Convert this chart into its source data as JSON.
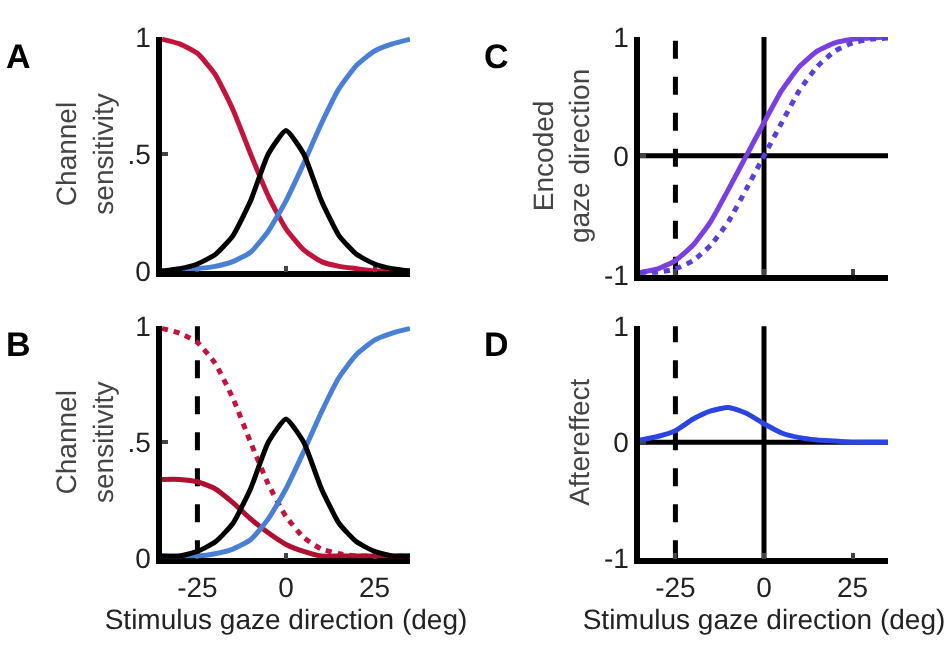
{
  "chart_data": [
    {
      "type": "line",
      "annotations": [
        "A"
      ],
      "ylabel": "Channel sensitivity",
      "xlim": [
        -35,
        35
      ],
      "xticks": [
        {
          "value": -25,
          "label": null
        },
        {
          "value": 0,
          "label": null
        },
        {
          "value": 25,
          "label": null
        }
      ],
      "ylim": [
        0,
        1
      ],
      "yticks": [
        0,
        {
          "value": 0.5,
          "label": ".5"
        },
        1
      ],
      "tick_labels": "y",
      "grid": false,
      "marker": "none",
      "line_style": "solid",
      "x": [
        -35,
        -30,
        -25,
        -20,
        -15,
        -10,
        -5,
        0,
        5,
        10,
        15,
        20,
        25,
        30,
        35
      ],
      "series": [
        {
          "color": "#c0143c",
          "values": [
            0.99,
            0.97,
            0.93,
            0.84,
            0.69,
            0.5,
            0.32,
            0.18,
            0.09,
            0.04,
            0.02,
            0.01,
            0,
            0,
            0
          ]
        },
        {
          "color": "#4a7fd6",
          "values": [
            0,
            0,
            0.01,
            0.02,
            0.04,
            0.08,
            0.17,
            0.3,
            0.46,
            0.63,
            0.78,
            0.88,
            0.94,
            0.97,
            0.99
          ]
        },
        {
          "color": "#000000",
          "values": [
            0,
            0.01,
            0.03,
            0.07,
            0.15,
            0.3,
            0.5,
            0.6,
            0.5,
            0.3,
            0.15,
            0.07,
            0.03,
            0.01,
            0
          ]
        }
      ]
    },
    {
      "type": "line",
      "annotations": [
        "B"
      ],
      "ylabel": "Channel sensitivity",
      "xlabel": "Stimulus gaze direction (deg)",
      "xlim": [
        -35,
        35
      ],
      "xticks": [
        -25,
        0,
        25
      ],
      "ylim": [
        0,
        1
      ],
      "yticks": [
        0,
        {
          "value": 0.5,
          "label": ".5"
        },
        1
      ],
      "grid": false,
      "marker": "none",
      "line_style": "solid",
      "ref_lines": [
        {
          "axis": "x",
          "value": -25,
          "color": "#000000",
          "line_style": "dashed"
        }
      ],
      "x": [
        -35,
        -30,
        -25,
        -20,
        -15,
        -10,
        -5,
        0,
        5,
        10,
        15,
        20,
        25,
        30,
        35
      ],
      "series": [
        {
          "color": "#c0143c",
          "line_style": "dotted",
          "values": [
            0.99,
            0.97,
            0.93,
            0.84,
            0.69,
            0.5,
            0.32,
            0.18,
            0.09,
            0.04,
            0.02,
            0.01,
            0.01,
            0.01,
            0.01
          ]
        },
        {
          "color": "#b01030",
          "values": [
            0.34,
            0.34,
            0.33,
            0.3,
            0.24,
            0.17,
            0.11,
            0.06,
            0.03,
            0.01,
            0.01,
            0.01,
            0.01,
            0.01,
            0.01
          ]
        },
        {
          "color": "#4a7fd6",
          "values": [
            0.01,
            0.01,
            0.01,
            0.02,
            0.04,
            0.08,
            0.17,
            0.3,
            0.46,
            0.63,
            0.78,
            0.88,
            0.94,
            0.97,
            0.99
          ]
        },
        {
          "color": "#000000",
          "values": [
            0.01,
            0.01,
            0.03,
            0.07,
            0.15,
            0.3,
            0.5,
            0.6,
            0.5,
            0.3,
            0.15,
            0.07,
            0.03,
            0.01,
            0.01
          ]
        }
      ]
    },
    {
      "type": "line",
      "annotations": [
        "C"
      ],
      "ylabel": "Encoded gaze direction",
      "xlim": [
        -35,
        35
      ],
      "xticks": [
        {
          "value": -25,
          "label": null
        },
        {
          "value": 0,
          "label": null
        },
        {
          "value": 25,
          "label": null
        }
      ],
      "ylim": [
        -1,
        1
      ],
      "yticks": [
        -1,
        0,
        1
      ],
      "tick_labels": "y",
      "grid": false,
      "marker": "none",
      "line_style": "solid",
      "ref_lines": [
        {
          "axis": "x",
          "value": -25,
          "color": "#000000",
          "line_style": "dashed"
        },
        {
          "axis": "x",
          "value": 0,
          "color": "#000000",
          "line_style": "solid"
        },
        {
          "axis": "y",
          "value": 0,
          "color": "#000000",
          "line_style": "solid"
        }
      ],
      "x": [
        -35,
        -30,
        -25,
        -20,
        -15,
        -10,
        -5,
        0,
        5,
        10,
        15,
        20,
        25,
        30,
        35
      ],
      "series": [
        {
          "color": "#7a3fe0",
          "values": [
            -0.98,
            -0.95,
            -0.88,
            -0.75,
            -0.55,
            -0.28,
            0,
            0.28,
            0.55,
            0.75,
            0.88,
            0.95,
            0.98,
            0.99,
            1.0
          ]
        },
        {
          "color": "#5a3fd8",
          "line_style": "dotted",
          "values": [
            -0.99,
            -0.98,
            -0.95,
            -0.88,
            -0.75,
            -0.55,
            -0.28,
            0,
            0.28,
            0.55,
            0.75,
            0.88,
            0.95,
            0.98,
            0.99
          ]
        }
      ]
    },
    {
      "type": "line",
      "annotations": [
        "D"
      ],
      "ylabel": "Aftereffect",
      "xlabel": "Stimulus gaze direction (deg)",
      "xlim": [
        -35,
        35
      ],
      "xticks": [
        -25,
        0,
        25
      ],
      "ylim": [
        -1,
        1
      ],
      "yticks": [
        -1,
        0,
        1
      ],
      "grid": false,
      "marker": "none",
      "line_style": "solid",
      "ref_lines": [
        {
          "axis": "x",
          "value": -25,
          "color": "#000000",
          "line_style": "dashed"
        },
        {
          "axis": "x",
          "value": 0,
          "color": "#000000",
          "line_style": "solid"
        },
        {
          "axis": "y",
          "value": 0,
          "color": "#000000",
          "line_style": "solid"
        }
      ],
      "x": [
        -35,
        -30,
        -25,
        -20,
        -15,
        -10,
        -5,
        0,
        5,
        10,
        15,
        20,
        25,
        30,
        35
      ],
      "series": [
        {
          "color": "#2a45e0",
          "values": [
            0.02,
            0.05,
            0.1,
            0.2,
            0.27,
            0.3,
            0.25,
            0.16,
            0.08,
            0.04,
            0.02,
            0.01,
            0,
            0,
            0
          ]
        }
      ]
    }
  ]
}
